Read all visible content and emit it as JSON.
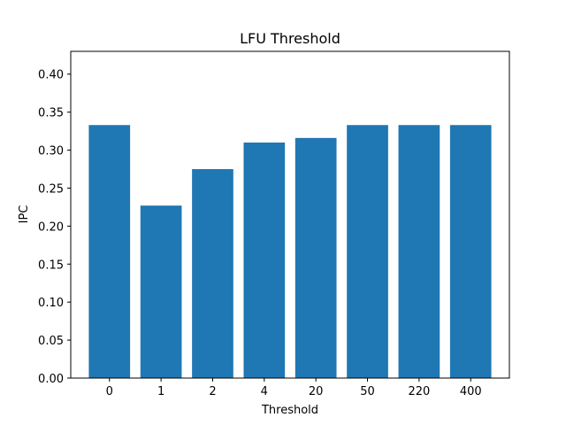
{
  "chart_data": {
    "type": "bar",
    "title": "LFU Threshold",
    "xlabel": "Threshold",
    "ylabel": "IPC",
    "categories": [
      "0",
      "1",
      "2",
      "4",
      "20",
      "50",
      "220",
      "400"
    ],
    "values": [
      0.333,
      0.227,
      0.275,
      0.31,
      0.316,
      0.333,
      0.333,
      0.333
    ],
    "ylim": [
      0,
      0.43
    ],
    "yticks": [
      "0.00",
      "0.05",
      "0.10",
      "0.15",
      "0.20",
      "0.25",
      "0.30",
      "0.35",
      "0.40"
    ],
    "grid": false,
    "colors": {
      "bar": "#1f77b4",
      "axis": "#000000"
    }
  }
}
